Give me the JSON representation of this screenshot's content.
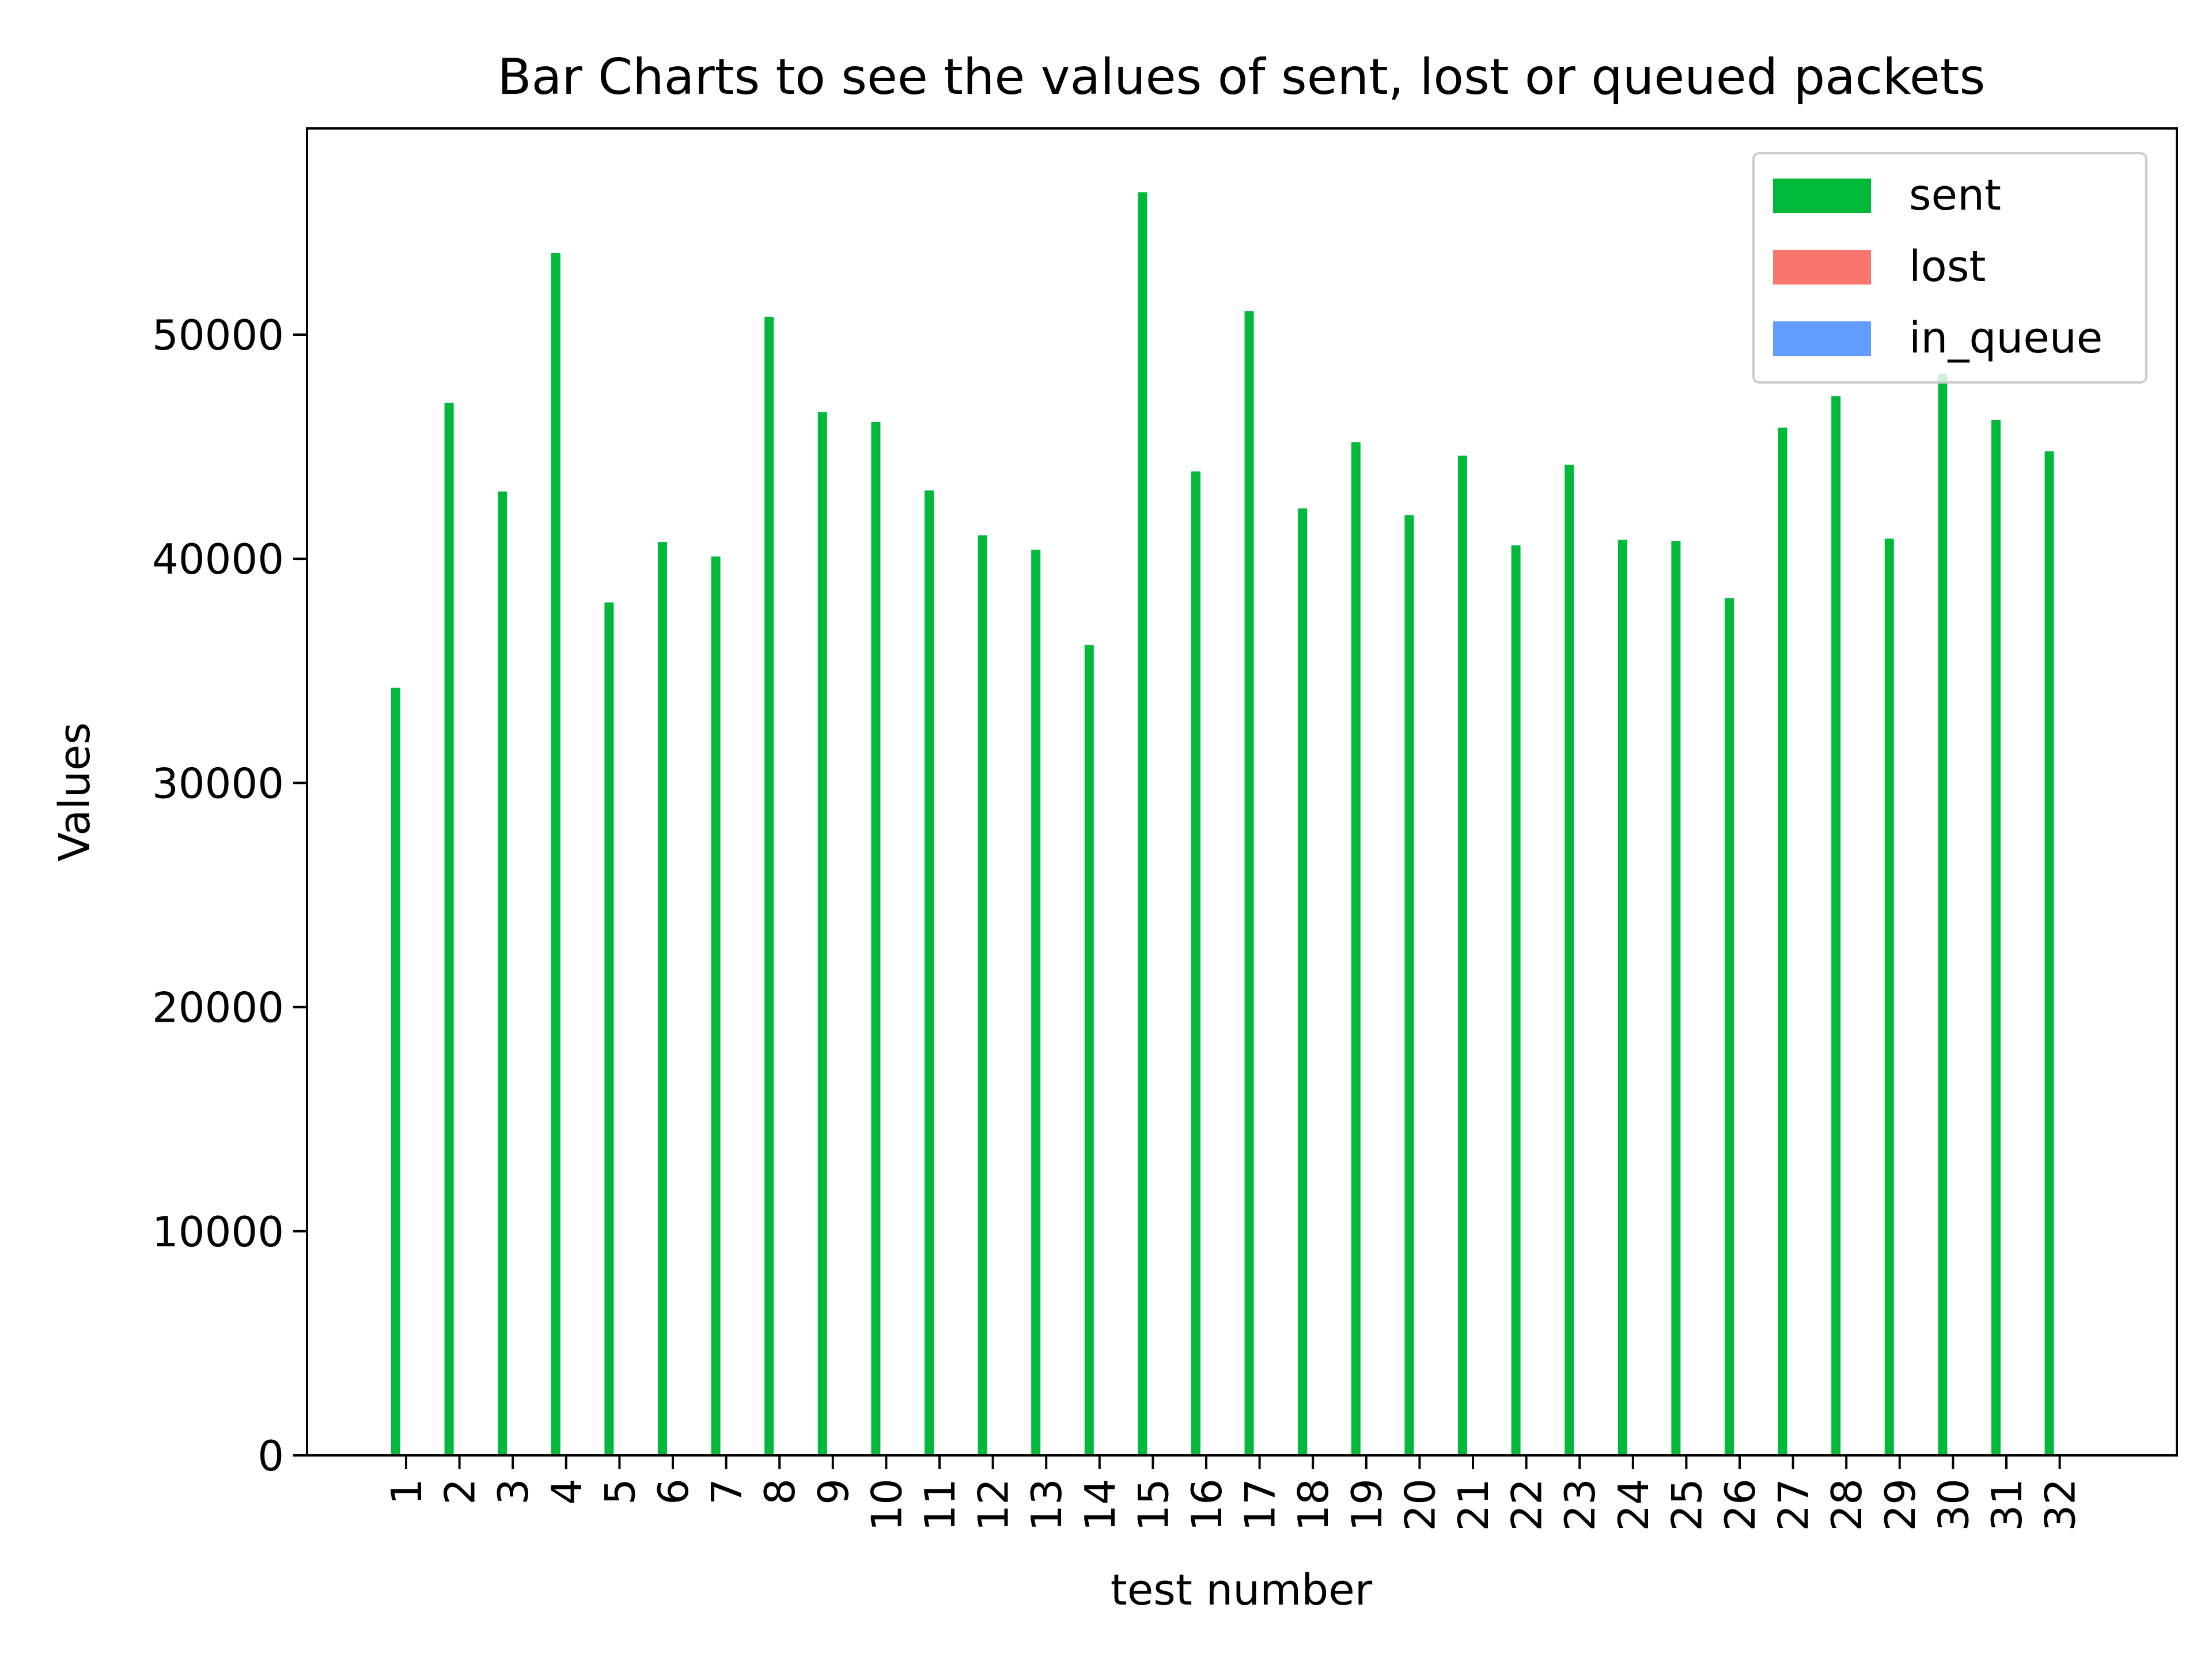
{
  "chart_data": {
    "type": "bar",
    "title": "Bar Charts to see the values of sent, lost or queued packets",
    "xlabel": "test number",
    "ylabel": "Values",
    "ylim": [
      0,
      59200
    ],
    "yticks": [
      "0",
      "10000",
      "20000",
      "30000",
      "40000",
      "50000"
    ],
    "grid": false,
    "legend_position": "top-right",
    "categories": [
      "1",
      "2",
      "3",
      "4",
      "5",
      "6",
      "7",
      "8",
      "9",
      "10",
      "11",
      "12",
      "13",
      "14",
      "15",
      "16",
      "17",
      "18",
      "19",
      "20",
      "21",
      "22",
      "23",
      "24",
      "25",
      "26",
      "27",
      "28",
      "29",
      "30",
      "31",
      "32"
    ],
    "series": [
      {
        "name": "sent",
        "color": "#00b93b",
        "values": [
          34250,
          46950,
          43000,
          53650,
          38050,
          40750,
          40100,
          50800,
          46550,
          46100,
          43050,
          41050,
          40400,
          36150,
          56350,
          43900,
          51050,
          42250,
          45200,
          41950,
          44600,
          40600,
          44200,
          40850,
          40800,
          38250,
          45850,
          47250,
          40900,
          48250,
          46200,
          44800
        ]
      },
      {
        "name": "lost",
        "color": "#f8766d",
        "values": [
          0,
          0,
          0,
          0,
          0,
          0,
          0,
          0,
          0,
          0,
          0,
          0,
          0,
          0,
          0,
          0,
          0,
          0,
          0,
          0,
          0,
          0,
          0,
          0,
          0,
          0,
          0,
          0,
          0,
          0,
          0,
          0
        ]
      },
      {
        "name": "in_queue",
        "color": "#619cff",
        "values": [
          0,
          0,
          0,
          0,
          0,
          0,
          0,
          0,
          0,
          0,
          0,
          0,
          0,
          0,
          0,
          0,
          0,
          0,
          0,
          0,
          0,
          0,
          0,
          0,
          0,
          0,
          0,
          0,
          0,
          0,
          0,
          0
        ]
      }
    ]
  }
}
